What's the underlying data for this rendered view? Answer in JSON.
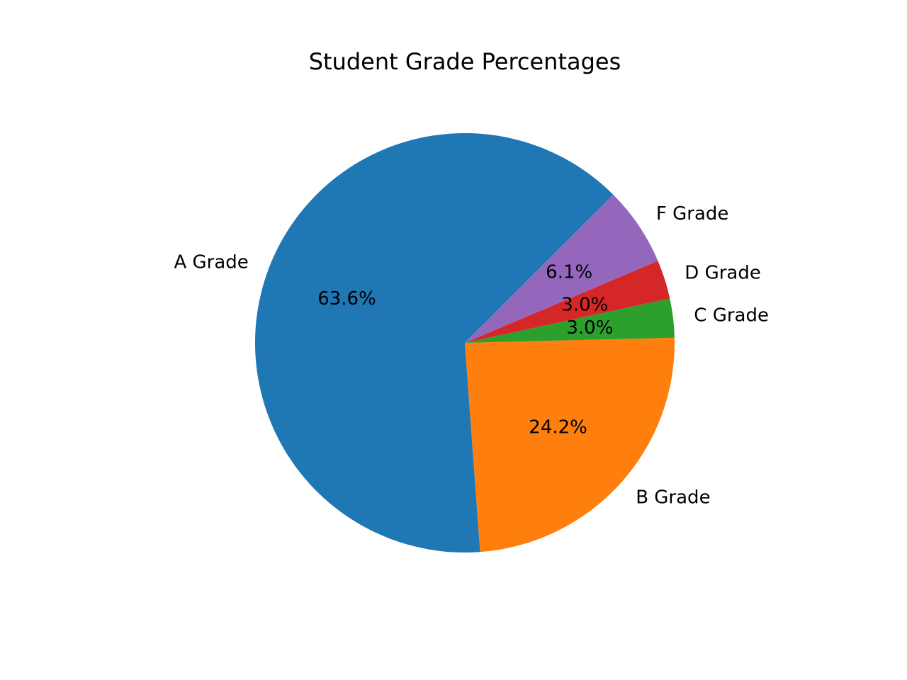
{
  "chart_data": {
    "type": "pie",
    "title": "Student Grade Percentages",
    "start_angle_deg": 45,
    "direction": "counterclockwise",
    "slices": [
      {
        "label": "A Grade",
        "value": 63.6,
        "pct_label": "63.6%",
        "color": "#1f77b4"
      },
      {
        "label": "B Grade",
        "value": 24.2,
        "pct_label": "24.2%",
        "color": "#ff7f0e"
      },
      {
        "label": "C Grade",
        "value": 3.0,
        "pct_label": "3.0%",
        "color": "#2ca02c"
      },
      {
        "label": "D Grade",
        "value": 3.0,
        "pct_label": "3.0%",
        "color": "#d62728"
      },
      {
        "label": "F Grade",
        "value": 6.1,
        "pct_label": "6.1%",
        "color": "#9467bd"
      }
    ]
  }
}
